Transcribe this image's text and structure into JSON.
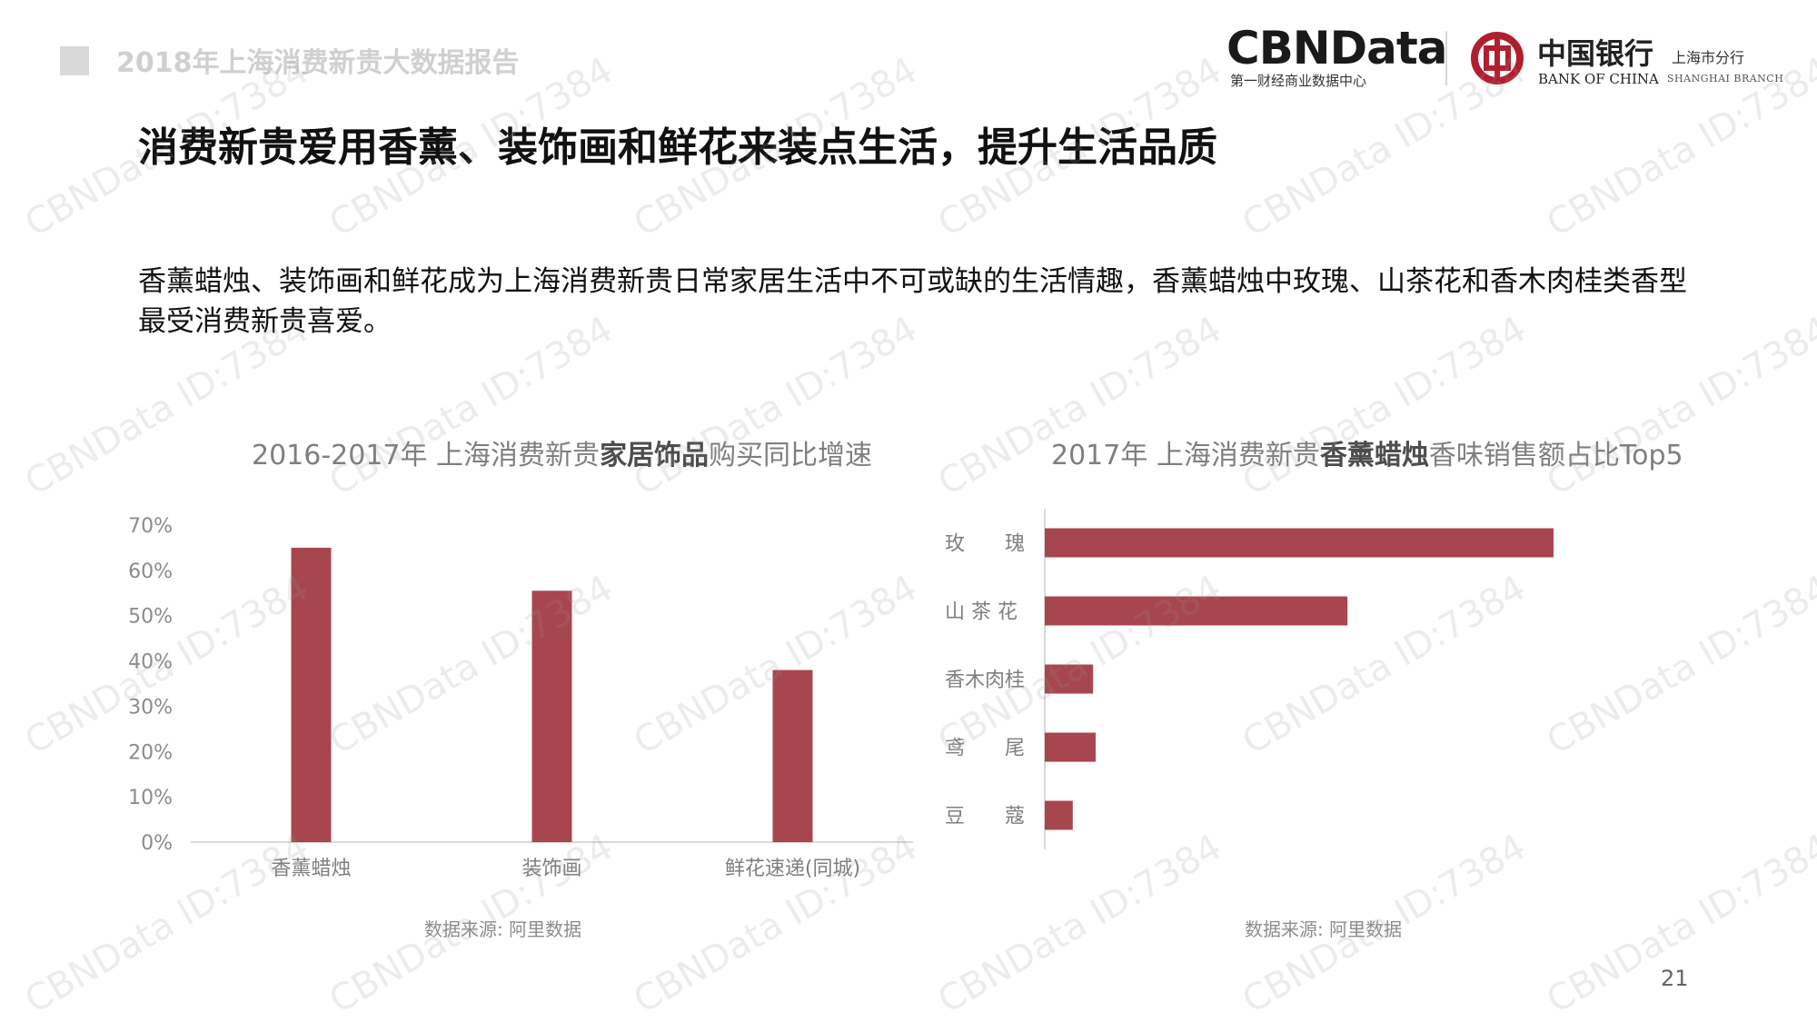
{
  "header": {
    "report_title": "2018年上海消费新贵大数据报告"
  },
  "logos": {
    "cbn_main": "CBNData",
    "cbn_sub": "第一财经商业数据中心",
    "boc_cn": "中国银行",
    "boc_cn_branch": "上海市分行",
    "boc_en": "BANK OF CHINA",
    "boc_en_branch": "SHANGHAI  BRANCH",
    "brand_color": "#b11f2f"
  },
  "watermark_text": "CBNData ID:7384",
  "main_title": "消费新贵爱用香薰、装饰画和鲜花来装点生活，提升生活品质",
  "summary": "香薰蜡烛、装饰画和鲜花成为上海消费新贵日常家居生活中不可或缺的生活情趣，香薰蜡烛中玫瑰、山茶花和香木肉桂类香型最受消费新贵喜爱。",
  "charts": [
    {
      "title_prefix": "2016-2017年 上海消费新贵",
      "title_bold": "家居饰品",
      "title_suffix": "购买同比增速",
      "source": "数据来源: 阿里数据"
    },
    {
      "title_prefix": "2017年 上海消费新贵",
      "title_bold": "香薰蜡烛",
      "title_suffix": "香味销售额占比Top5",
      "source": "数据来源: 阿里数据"
    }
  ],
  "chart_data": [
    {
      "type": "bar",
      "categories": [
        "香薰蜡烛",
        "装饰画",
        "鲜花速递(同城)"
      ],
      "values": [
        65,
        55.5,
        38
      ],
      "ylim": [
        0,
        70
      ],
      "yticks": [
        "0%",
        "10%",
        "20%",
        "30%",
        "40%",
        "50%",
        "60%",
        "70%"
      ],
      "grid": false,
      "color": "#a8464f"
    },
    {
      "type": "bar",
      "orientation": "horizontal",
      "categories": [
        "玫　　瑰",
        "山 茶 花",
        "香木肉桂",
        "鸢　　尾",
        "豆　　蔻"
      ],
      "values": [
        100,
        59.5,
        9.5,
        10,
        5.5
      ],
      "xlim": [
        0,
        100
      ],
      "grid": false,
      "color": "#a8464f"
    }
  ],
  "page_number": "21"
}
